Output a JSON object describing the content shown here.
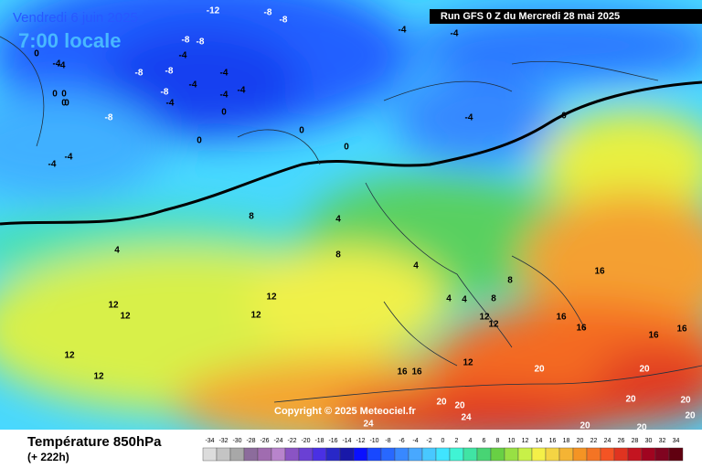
{
  "header": {
    "valid_time": "Vendredi 6 juin 2025",
    "local_time": "7:00 locale",
    "run": "Run GFS 0 Z du Mercredi 28 mai 2025"
  },
  "copyright": "Copyright © 2025 Meteociel.fr",
  "footer": {
    "title": "Température 850hPa",
    "lead": "(+ 222h)"
  },
  "legend": {
    "labels": [
      "-34",
      "-32",
      "-30",
      "-28",
      "-26",
      "-24",
      "-22",
      "-20",
      "-18",
      "-16",
      "-14",
      "-12",
      "-10",
      "-8",
      "-6",
      "-4",
      "-2",
      "0",
      "2",
      "4",
      "6",
      "8",
      "10",
      "12",
      "14",
      "16",
      "18",
      "20",
      "22",
      "24",
      "26",
      "28",
      "30",
      "32",
      "34"
    ],
    "colors": [
      "#dcdcdc",
      "#c4c4c4",
      "#a8a8a8",
      "#8c6c9c",
      "#a06cb0",
      "#b884cc",
      "#8a54c4",
      "#6a40d4",
      "#4a30e4",
      "#2828c8",
      "#1818a8",
      "#0a10ff",
      "#1848ff",
      "#2868ff",
      "#3888ff",
      "#48a8ff",
      "#48c8ff",
      "#40e4ff",
      "#40f4d4",
      "#40e4a4",
      "#48d474",
      "#68d044",
      "#98e044",
      "#c8f048",
      "#f4f048",
      "#f4d444",
      "#f4b434",
      "#f49424",
      "#f47424",
      "#f45424",
      "#e03420",
      "#c41420",
      "#a00420",
      "#800420",
      "#600010"
    ]
  },
  "map_labels": [
    "-12",
    "-8",
    "-8",
    "-4",
    "-4",
    "-8",
    "-8",
    "-4",
    "-8",
    "-8",
    "-4",
    "-4",
    "-8",
    "-4",
    "-4",
    "-4",
    "-8",
    "-4",
    "0",
    "-4",
    "0",
    "0",
    "0",
    "0",
    "-4",
    "-4",
    "0",
    "0",
    "-4",
    "0",
    "0",
    "0",
    "8",
    "4",
    "4",
    "8",
    "4",
    "4",
    "4",
    "8",
    "8",
    "12",
    "12",
    "12",
    "12",
    "12",
    "12",
    "12",
    "16",
    "16",
    "16",
    "16",
    "16",
    "16",
    "16",
    "12",
    "12",
    "20",
    "20",
    "20",
    "24",
    "20",
    "20",
    "20",
    "24",
    "20",
    "20",
    "20"
  ]
}
